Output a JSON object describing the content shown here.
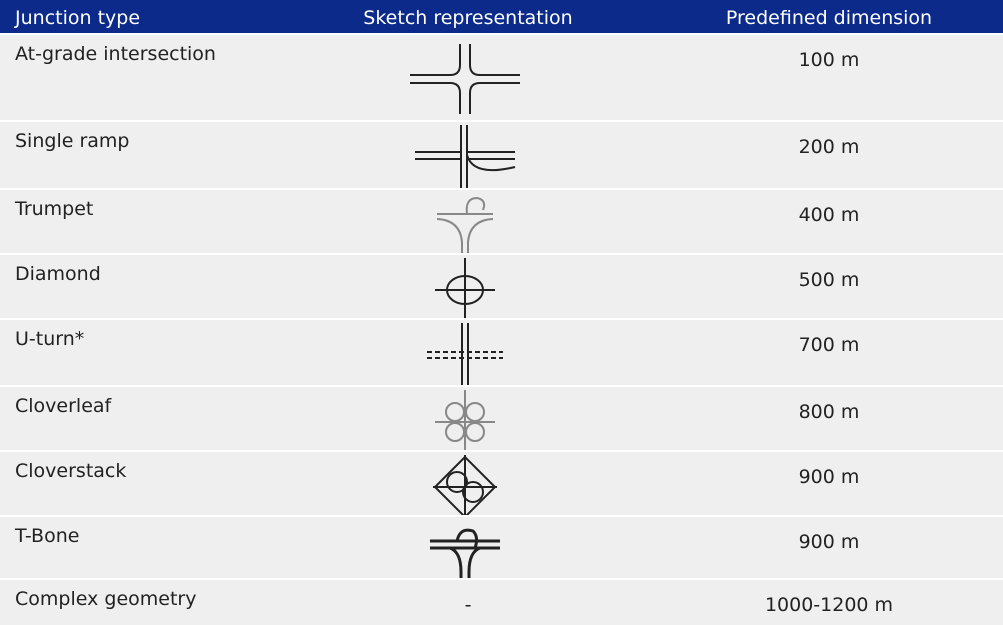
{
  "table": {
    "header": [
      "Junction type",
      "Sketch representation",
      "Predefined dimension"
    ],
    "rows": [
      {
        "type": "At-grade intersection",
        "dimension": "100 m"
      },
      {
        "type": "Single ramp",
        "dimension": "200 m"
      },
      {
        "type": "Trumpet",
        "dimension": "400 m"
      },
      {
        "type": "Diamond",
        "dimension": "500 m"
      },
      {
        "type": "U-turn*",
        "dimension": "700 m"
      },
      {
        "type": "Cloverleaf",
        "dimension": "800 m"
      },
      {
        "type": "Cloverstack",
        "dimension": "900 m"
      },
      {
        "type": "T-Bone",
        "dimension": "900 m"
      },
      {
        "type": "Complex geometry",
        "sketch": "-",
        "dimension": "1000-1200 m"
      }
    ]
  }
}
